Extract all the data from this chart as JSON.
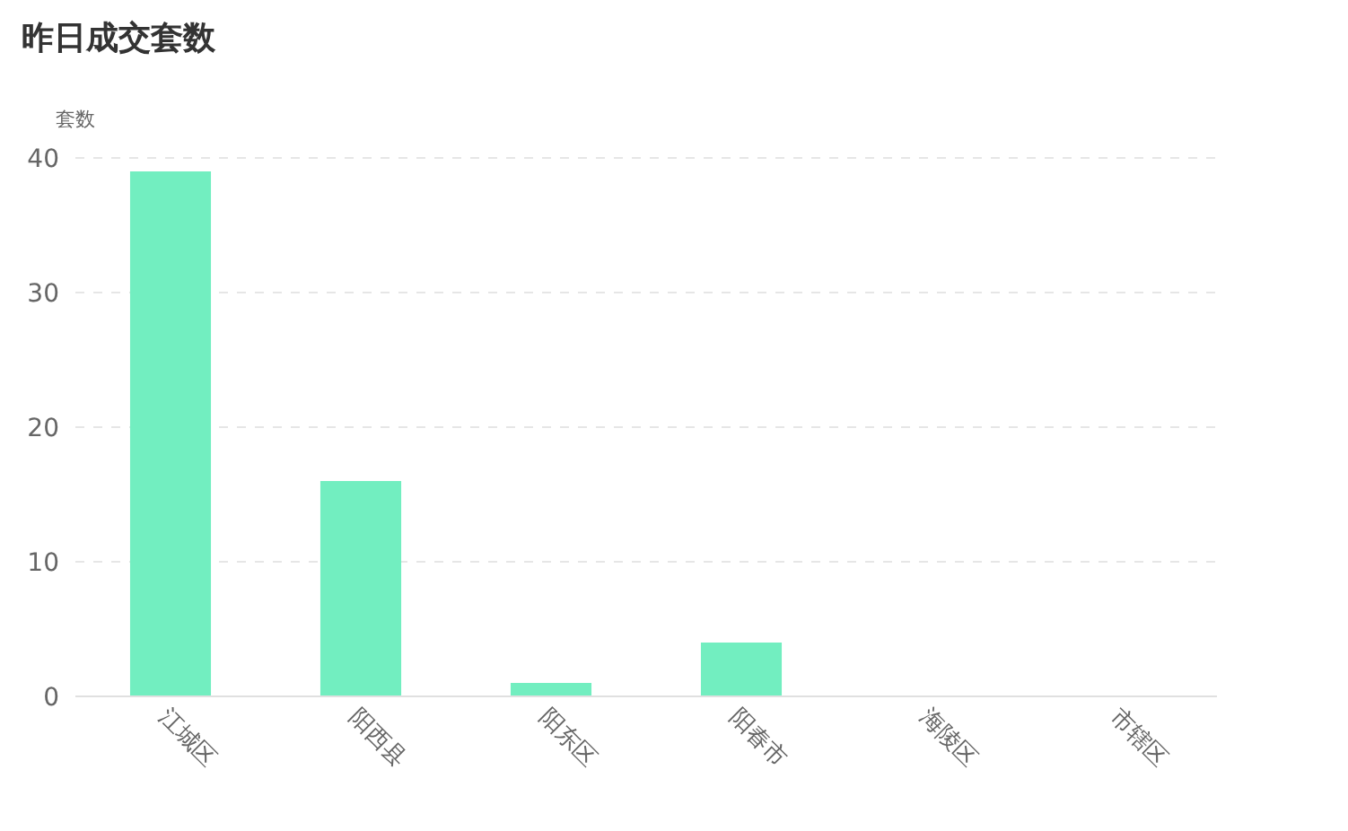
{
  "chart_data": {
    "type": "bar",
    "title": "昨日成交套数",
    "ylabel": "套数",
    "categories": [
      "江城区",
      "阳西县",
      "阳东区",
      "阳春市",
      "海陵区",
      "市辖区"
    ],
    "values": [
      39,
      16,
      1,
      4,
      0,
      0
    ],
    "color": "#72eec0",
    "ylim": [
      0,
      40
    ],
    "yticks": [
      0,
      10,
      20,
      30,
      40
    ],
    "grid": "y"
  }
}
